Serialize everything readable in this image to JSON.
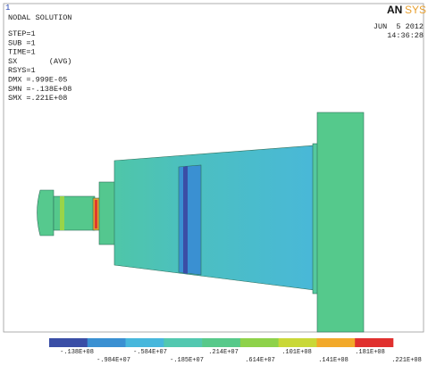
{
  "header": {
    "plot_number": "1",
    "title": "NODAL SOLUTION",
    "lines": [
      "STEP=1",
      "SUB =1",
      "TIME=1",
      "SX       (AVG)",
      "RSYS=1",
      "DMX =.999E-05",
      "SMN =-.138E+08",
      "SMX =.221E+08"
    ],
    "logo_left": "AN",
    "logo_right": "SYS",
    "date": "JUN  5 2012",
    "time": "14:36:28"
  },
  "legend": {
    "labels": [
      "-.138E+08",
      "-.984E+07",
      "-.584E+07",
      "-.185E+07",
      ".214E+07",
      ".614E+07",
      ".101E+08",
      ".141E+08",
      ".181E+08",
      ".221E+08"
    ],
    "colors": [
      "#3a4ea6",
      "#3a90d2",
      "#47b7dc",
      "#52c8b0",
      "#57c98a",
      "#8ed24a",
      "#c9d838",
      "#f2a92a",
      "#e0302e"
    ]
  }
}
